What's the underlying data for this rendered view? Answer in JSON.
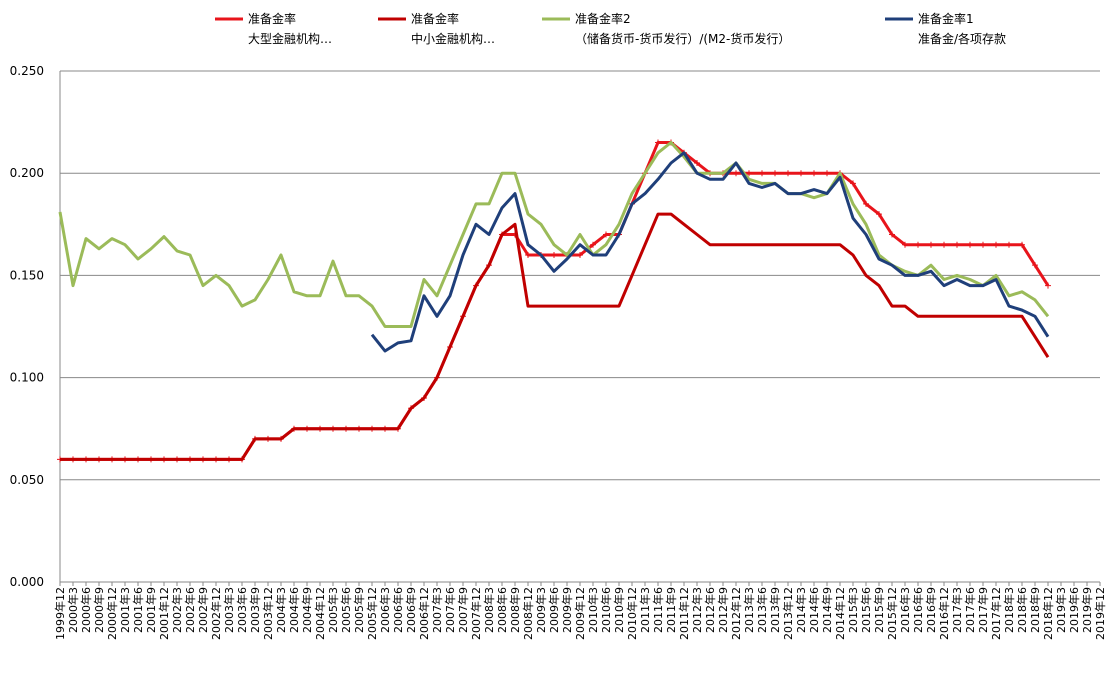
{
  "chart_data": {
    "type": "line",
    "categories": [
      "1999年12",
      "2000年3",
      "2000年6",
      "2000年9",
      "2000年12",
      "2001年3",
      "2001年6",
      "2001年9",
      "2001年12",
      "2002年3",
      "2002年6",
      "2002年9",
      "2002年12",
      "2003年3",
      "2003年6",
      "2003年9",
      "2003年12",
      "2004年3",
      "2004年6",
      "2004年9",
      "2004年12",
      "2005年3",
      "2005年6",
      "2005年9",
      "2005年12",
      "2006年3",
      "2006年6",
      "2006年9",
      "2006年12",
      "2007年3",
      "2007年6",
      "2007年9",
      "2007年12",
      "2008年3",
      "2008年6",
      "2008年9",
      "2008年12",
      "2009年3",
      "2009年6",
      "2009年9",
      "2009年12",
      "2010年3",
      "2010年6",
      "2010年9",
      "2010年12",
      "2011年3",
      "2011年6",
      "2011年9",
      "2011年12",
      "2012年3",
      "2012年6",
      "2012年9",
      "2012年12",
      "2013年3",
      "2013年6",
      "2013年9",
      "2013年12",
      "2014年3",
      "2014年6",
      "2014年9",
      "2014年12",
      "2015年3",
      "2015年6",
      "2015年9",
      "2015年12",
      "2016年3",
      "2016年6",
      "2016年9",
      "2016年12",
      "2017年3",
      "2017年6",
      "2017年9",
      "2017年12",
      "2018年3",
      "2018年6",
      "2018年9",
      "2018年12",
      "2019年3",
      "2019年6",
      "2019年9",
      "2019年12"
    ],
    "series": [
      {
        "name": "准备金率\n大型金融机构…",
        "color": "#e8141b",
        "marker": "plus",
        "values": [
          0.06,
          0.06,
          0.06,
          0.06,
          0.06,
          0.06,
          0.06,
          0.06,
          0.06,
          0.06,
          0.06,
          0.06,
          0.06,
          0.06,
          0.06,
          0.07,
          0.07,
          0.07,
          0.075,
          0.075,
          0.075,
          0.075,
          0.075,
          0.075,
          0.075,
          0.075,
          0.075,
          0.085,
          0.09,
          0.1,
          0.115,
          0.13,
          0.145,
          0.155,
          0.17,
          0.17,
          0.16,
          0.16,
          0.16,
          0.16,
          0.16,
          0.165,
          0.17,
          0.17,
          0.185,
          0.2,
          0.215,
          0.215,
          0.21,
          0.205,
          0.2,
          0.2,
          0.2,
          0.2,
          0.2,
          0.2,
          0.2,
          0.2,
          0.2,
          0.2,
          0.2,
          0.195,
          0.185,
          0.18,
          0.17,
          0.165,
          0.165,
          0.165,
          0.165,
          0.165,
          0.165,
          0.165,
          0.165,
          0.165,
          0.165,
          0.155,
          0.145,
          null,
          null,
          null,
          null
        ]
      },
      {
        "name": "准备金率\n中小金融机构…",
        "color": "#c00000",
        "values": [
          0.06,
          0.06,
          0.06,
          0.06,
          0.06,
          0.06,
          0.06,
          0.06,
          0.06,
          0.06,
          0.06,
          0.06,
          0.06,
          0.06,
          0.06,
          0.07,
          0.07,
          0.07,
          0.075,
          0.075,
          0.075,
          0.075,
          0.075,
          0.075,
          0.075,
          0.075,
          0.075,
          0.085,
          0.09,
          0.1,
          0.115,
          0.13,
          0.145,
          0.155,
          0.17,
          0.175,
          0.135,
          0.135,
          0.135,
          0.135,
          0.135,
          0.135,
          0.135,
          0.135,
          0.15,
          0.165,
          0.18,
          0.18,
          0.175,
          0.17,
          0.165,
          0.165,
          0.165,
          0.165,
          0.165,
          0.165,
          0.165,
          0.165,
          0.165,
          0.165,
          0.165,
          0.16,
          0.15,
          0.145,
          0.135,
          0.135,
          0.13,
          0.13,
          0.13,
          0.13,
          0.13,
          0.13,
          0.13,
          0.13,
          0.13,
          0.12,
          0.11,
          null,
          null,
          null,
          null
        ]
      },
      {
        "name": "准备金率2\n（储备货币-货币发行）/(M2-货币发行）",
        "color": "#9bbb59",
        "values": [
          0.181,
          0.145,
          0.168,
          0.163,
          0.168,
          0.165,
          0.158,
          0.163,
          0.169,
          0.162,
          0.16,
          0.145,
          0.15,
          0.145,
          0.135,
          0.138,
          0.148,
          0.16,
          0.142,
          0.14,
          0.14,
          0.157,
          0.14,
          0.14,
          0.135,
          0.125,
          0.125,
          0.125,
          0.148,
          0.14,
          0.155,
          0.17,
          0.185,
          0.185,
          0.2,
          0.2,
          0.18,
          0.175,
          0.165,
          0.16,
          0.17,
          0.16,
          0.165,
          0.175,
          0.19,
          0.2,
          0.21,
          0.215,
          0.208,
          0.2,
          0.2,
          0.2,
          0.205,
          0.197,
          0.195,
          0.195,
          0.19,
          0.19,
          0.188,
          0.19,
          0.2,
          0.185,
          0.175,
          0.16,
          0.155,
          0.152,
          0.15,
          0.155,
          0.148,
          0.15,
          0.148,
          0.145,
          0.15,
          0.14,
          0.142,
          0.138,
          0.13,
          null,
          null,
          null,
          null
        ]
      },
      {
        "name": "准备金率1\n准备金/各项存款",
        "color": "#1f3f7a",
        "values": [
          null,
          null,
          null,
          null,
          null,
          null,
          null,
          null,
          null,
          null,
          null,
          null,
          null,
          null,
          null,
          null,
          null,
          null,
          null,
          null,
          null,
          null,
          null,
          null,
          0.121,
          0.113,
          0.117,
          0.118,
          0.14,
          0.13,
          0.14,
          0.16,
          0.175,
          0.17,
          0.183,
          0.19,
          0.165,
          0.16,
          0.152,
          0.158,
          0.165,
          0.16,
          0.16,
          0.17,
          0.185,
          0.19,
          0.197,
          0.205,
          0.21,
          0.2,
          0.197,
          0.197,
          0.205,
          0.195,
          0.193,
          0.195,
          0.19,
          0.19,
          0.192,
          0.19,
          0.198,
          0.178,
          0.17,
          0.158,
          0.155,
          0.15,
          0.15,
          0.152,
          0.145,
          0.148,
          0.145,
          0.145,
          0.148,
          0.135,
          0.133,
          0.13,
          0.12,
          null,
          null,
          null,
          null
        ]
      }
    ],
    "ylim": [
      0,
      0.25
    ],
    "yticks": [
      {
        "value": 0,
        "label": "0.000"
      },
      {
        "value": 0.05,
        "label": "0.050"
      },
      {
        "value": 0.1,
        "label": "0.100"
      },
      {
        "value": 0.15,
        "label": "0.150"
      },
      {
        "value": 0.2,
        "label": "0.200"
      },
      {
        "value": 0.25,
        "label": "0.250"
      }
    ],
    "grid": true,
    "legend": "top"
  }
}
